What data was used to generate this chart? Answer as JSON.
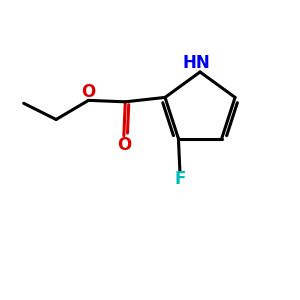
{
  "background_color": "#ffffff",
  "bond_color": "#000000",
  "bond_width": 2.2,
  "atoms": {
    "N": {
      "label": "HN",
      "color": "#0000ee"
    },
    "O_carbonyl": {
      "label": "O",
      "color": "#dd0000"
    },
    "O_ester": {
      "label": "O",
      "color": "#dd0000"
    },
    "F": {
      "label": "F",
      "color": "#00bbbb"
    }
  },
  "font_size_atoms": 12,
  "figsize": [
    3.0,
    3.0
  ],
  "dpi": 100,
  "xlim": [
    0,
    10
  ],
  "ylim": [
    0,
    10
  ]
}
